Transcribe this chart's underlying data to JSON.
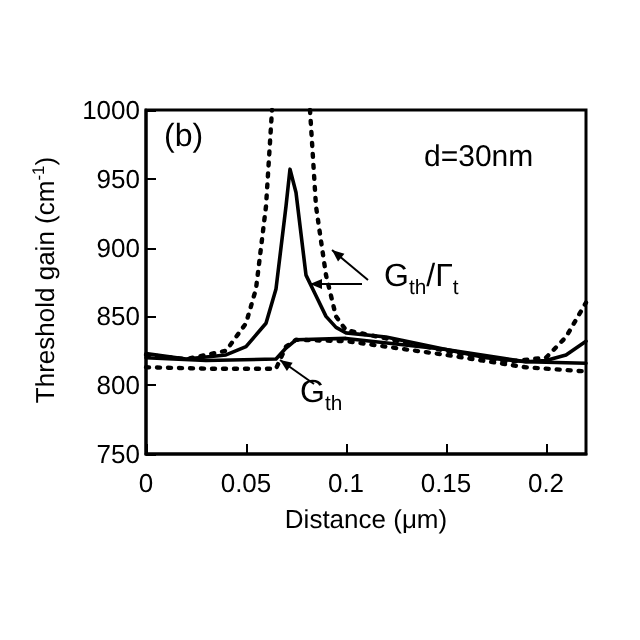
{
  "chart_data": {
    "type": "line",
    "xlabel": "Distance (μm)",
    "ylabel": "Threshold gain (cm$^{-1}$)",
    "xlim": [
      0,
      0.22
    ],
    "xticks": [
      0,
      0.05,
      0.1,
      0.15,
      0.2
    ],
    "ylim": [
      750,
      1000
    ],
    "yticks": [
      750,
      800,
      850,
      900,
      950,
      1000
    ],
    "grid": false,
    "marker": "none",
    "annotations": [
      "(b)",
      "d=30nm",
      "G$_{th}$/Γ$_{t}$",
      "G$_{th}$"
    ],
    "series": [
      {
        "color": "#000000",
        "line_style": "solid",
        "x": [
          0,
          0.02,
          0.04,
          0.05,
          0.06,
          0.065,
          0.07,
          0.072,
          0.075,
          0.08,
          0.085,
          0.09,
          0.095,
          0.1,
          0.12,
          0.15,
          0.17,
          0.19,
          0.2,
          0.21,
          0.22
        ],
        "values": [
          823,
          819,
          822,
          828,
          845,
          870,
          930,
          957,
          940,
          880,
          865,
          850,
          842,
          838,
          835,
          826,
          820,
          817,
          818,
          822,
          832
        ]
      },
      {
        "color": "#000000",
        "line_style": "dotted",
        "x": [
          0,
          0.02,
          0.04,
          0.05,
          0.055,
          0.06,
          0.063,
          0.07,
          0.082,
          0.085,
          0.09,
          0.095,
          0.1,
          0.12,
          0.15,
          0.18,
          0.2,
          0.21,
          0.22
        ],
        "values": [
          822,
          819,
          825,
          845,
          870,
          930,
          1000,
          null,
          1000,
          930,
          880,
          850,
          840,
          834,
          825,
          817,
          820,
          835,
          860
        ]
      },
      {
        "color": "#000000",
        "line_style": "solid",
        "x": [
          0,
          0.03,
          0.065,
          0.07,
          0.075,
          0.1,
          0.15,
          0.19,
          0.22
        ],
        "values": [
          820,
          818,
          819,
          827,
          833,
          834,
          826,
          817,
          816
        ]
      },
      {
        "color": "#000000",
        "line_style": "dotted",
        "x": [
          0,
          0.03,
          0.065,
          0.07,
          0.075,
          0.1,
          0.15,
          0.19,
          0.22
        ],
        "values": [
          813,
          812,
          812,
          828,
          833,
          832,
          822,
          813,
          810
        ]
      }
    ]
  }
}
